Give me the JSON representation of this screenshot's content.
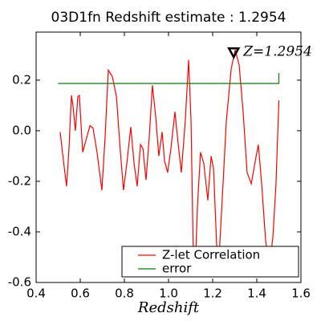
{
  "chart_data": {
    "type": "line",
    "title": "03D1fn Redshift estimate : 1.2954",
    "x_label": "Redshift",
    "xlim": [
      0.4,
      1.6
    ],
    "xticks": [
      0.4,
      0.6,
      0.8,
      1.0,
      1.2,
      1.4,
      1.6
    ],
    "ylim": [
      -0.6,
      0.39
    ],
    "yticks": [
      -0.6,
      -0.4,
      -0.2,
      0.0,
      0.2
    ],
    "legend": "lower right",
    "annotation": {
      "text": "Z=1.2954",
      "x": 1.2954,
      "y": 0.31
    },
    "series": [
      {
        "name": "Z-let Correlation",
        "color": "#ff0000",
        "x": [
          0.509,
          0.524,
          0.538,
          0.549,
          0.56,
          0.567,
          0.578,
          0.589,
          0.596,
          0.611,
          0.622,
          0.644,
          0.658,
          0.676,
          0.698,
          0.713,
          0.727,
          0.745,
          0.764,
          0.782,
          0.796,
          0.811,
          0.829,
          0.844,
          0.858,
          0.873,
          0.884,
          0.898,
          0.913,
          0.927,
          0.942,
          0.956,
          0.971,
          0.982,
          0.996,
          1.011,
          1.029,
          1.044,
          1.058,
          1.076,
          1.091,
          1.102,
          1.113,
          1.12,
          1.131,
          1.145,
          1.16,
          1.178,
          1.193,
          1.204,
          1.218,
          1.229,
          1.244,
          1.262,
          1.284,
          1.302,
          1.32,
          1.338,
          1.356,
          1.375,
          1.393,
          1.407,
          1.422,
          1.44,
          1.458,
          1.473,
          1.487,
          1.5
        ],
        "values": [
          -0.005,
          -0.12,
          -0.22,
          -0.07,
          0.14,
          0.1,
          0.0,
          0.135,
          0.14,
          -0.085,
          -0.05,
          0.02,
          0.01,
          -0.085,
          -0.235,
          -0.02,
          0.24,
          0.215,
          0.135,
          -0.085,
          -0.235,
          -0.13,
          0.015,
          -0.13,
          -0.22,
          -0.055,
          -0.07,
          -0.195,
          -0.02,
          0.18,
          0.055,
          -0.1,
          -0.005,
          -0.12,
          -0.165,
          -0.07,
          0.075,
          -0.055,
          -0.165,
          0.04,
          0.28,
          0.04,
          -0.53,
          -0.575,
          -0.3,
          -0.085,
          -0.13,
          -0.275,
          -0.1,
          -0.15,
          -0.45,
          -0.5,
          -0.26,
          0.04,
          0.245,
          0.32,
          0.26,
          0.075,
          -0.165,
          -0.21,
          -0.12,
          -0.055,
          -0.21,
          -0.435,
          -0.53,
          -0.42,
          -0.21,
          0.12
        ]
      },
      {
        "name": "error",
        "color": "#008000",
        "x": [
          0.5,
          1.5,
          1.5
        ],
        "values": [
          0.187,
          0.187,
          0.228
        ]
      }
    ]
  }
}
